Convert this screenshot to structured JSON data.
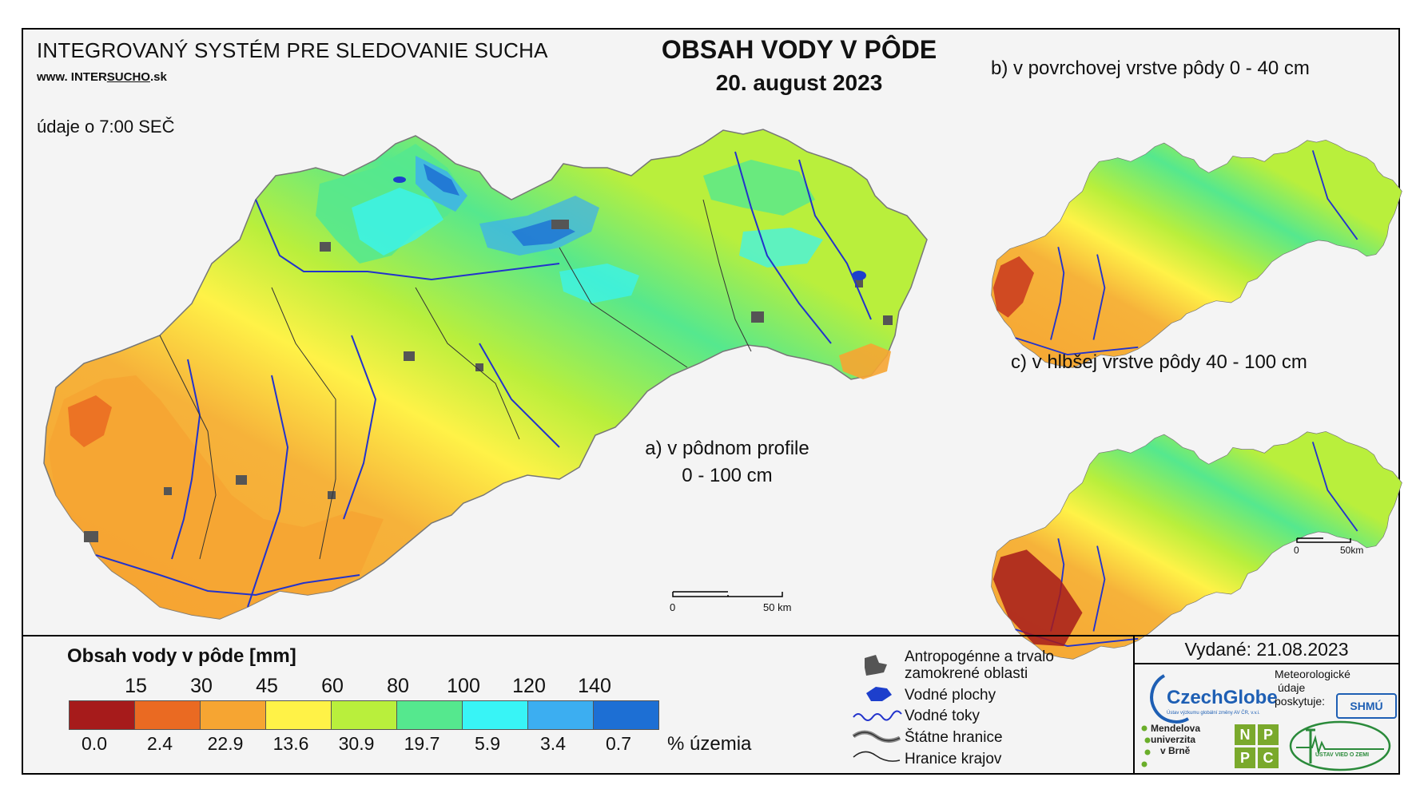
{
  "header": {
    "system_title": "INTEGROVANÝ SYSTÉM PRE SLEDOVANIE SUCHA",
    "website_prefix": "www. INTER",
    "website_underlined": "SUCHO",
    "website_suffix": ".sk",
    "data_time": "údaje o 7:00 SEČ",
    "main_title": "OBSAH VODY V PÔDE",
    "date": "20. august 2023"
  },
  "maps": {
    "a_label_line1": "a) v pôdnom profile",
    "a_label_line2": "0 - 100 cm",
    "b_label": "b) v povrchovej vrstve pôdy 0 - 40 cm",
    "c_label": "c) v hlbšej vrstve pôdy 40 - 100 cm",
    "scale_main_zero": "0",
    "scale_main_end": "50 km",
    "scale_small_zero": "0",
    "scale_small_end": "50km"
  },
  "legend": {
    "title": "Obsah vody v pôde  [mm]",
    "thresholds": [
      "15",
      "30",
      "45",
      "60",
      "80",
      "100",
      "120",
      "140"
    ],
    "classes": [
      {
        "color": "#a61b1b",
        "percent": "0.0"
      },
      {
        "color": "#ea6a22",
        "percent": "2.4"
      },
      {
        "color": "#f6a532",
        "percent": "22.9"
      },
      {
        "color": "#fff247",
        "percent": "13.6"
      },
      {
        "color": "#b9ef3c",
        "percent": "30.9"
      },
      {
        "color": "#55e88e",
        "percent": "19.7"
      },
      {
        "color": "#38f4f6",
        "percent": "5.9"
      },
      {
        "color": "#3caef1",
        "percent": "3.4"
      },
      {
        "color": "#1d6fd4",
        "percent": "0.7"
      }
    ],
    "percent_unit": "% územia"
  },
  "symbols": {
    "anthropogenic_line1": "Antropogénne a trvalo",
    "anthropogenic_line2": "zamokrené oblasti",
    "water_bodies": "Vodné plochy",
    "water_courses": "Vodné toky",
    "state_borders": "Štátne hranice",
    "region_borders": "Hranice krajov"
  },
  "footer": {
    "issued": "Vydané: 21.08.2023",
    "czechglobe": "CzechGlobe",
    "czechglobe_sub": "Ústav výzkumu globální změny AV ČR, v.v.i.",
    "met_line1": "Meteorologické",
    "met_line2": "údaje",
    "met_line3": "poskytuje:",
    "shmu": "SHMÚ",
    "mendel_line1": "Mendelova",
    "mendel_line2": "univerzita",
    "mendel_line3": "v Brně",
    "npp_letters": [
      "N",
      "P",
      "P",
      "C"
    ],
    "uvz": "ÚSTAV VIED O ZEMI"
  }
}
